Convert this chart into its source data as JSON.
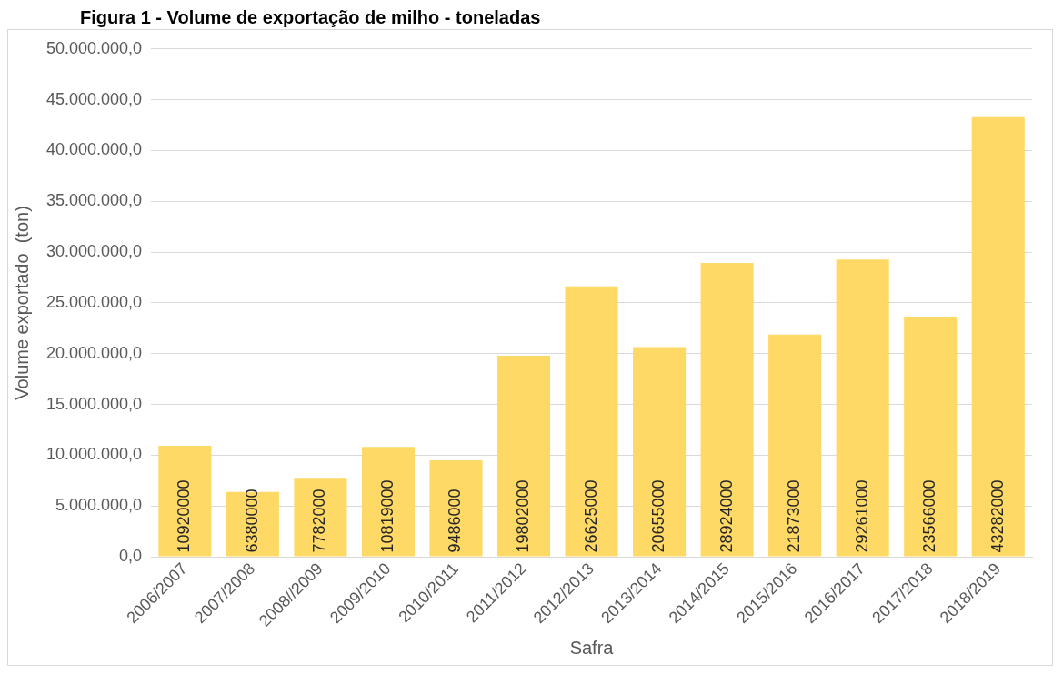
{
  "chart_data": {
    "type": "bar",
    "title": "Figura 1 - Volume de exportação de milho - toneladas",
    "xlabel": "Safra",
    "ylabel": "Volume exportado  (ton)",
    "categories": [
      "2006/2007",
      "2007/2008",
      "2008//2009",
      "2009/2010",
      "2010/2011",
      "2011/2012",
      "2012/2013",
      "2013/2014",
      "2014/2015",
      "2015/2016",
      "2016/2017",
      "2017/2018",
      "2018/2019"
    ],
    "values": [
      10920000,
      6380000,
      7782000,
      10819000,
      9486000,
      19802000,
      26625000,
      20655000,
      28924000,
      21873000,
      29261000,
      23566000,
      43282000
    ],
    "color": "#ffd966",
    "data_labels": true,
    "grid": "y",
    "legend": false,
    "ylim": [
      0,
      50000000
    ],
    "yticks": [
      {
        "value": 0,
        "label": "0,0"
      },
      {
        "value": 5000000,
        "label": "5.000.000,0"
      },
      {
        "value": 10000000,
        "label": "10.000.000,0"
      },
      {
        "value": 15000000,
        "label": "15.000.000,0"
      },
      {
        "value": 20000000,
        "label": "20.000.000,0"
      },
      {
        "value": 25000000,
        "label": "25.000.000,0"
      },
      {
        "value": 30000000,
        "label": "30.000.000,0"
      },
      {
        "value": 35000000,
        "label": "35.000.000,0"
      },
      {
        "value": 40000000,
        "label": "40.000.000,0"
      },
      {
        "value": 45000000,
        "label": "45.000.000,0"
      },
      {
        "value": 50000000,
        "label": "50.000.000,0"
      }
    ]
  }
}
